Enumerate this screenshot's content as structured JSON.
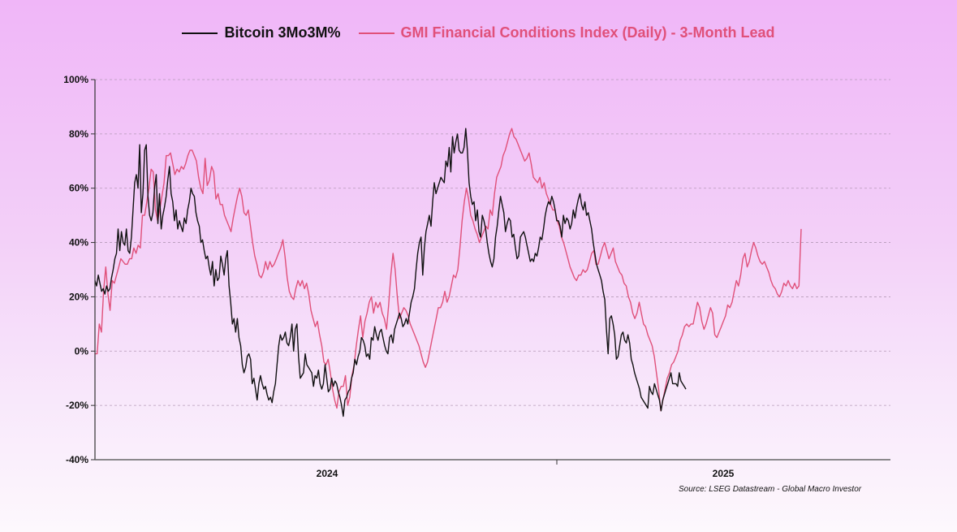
{
  "chart_data": {
    "type": "line",
    "title": "",
    "xlabel": "",
    "ylabel": "",
    "ylim": [
      -40,
      100
    ],
    "y_ticks": [
      "100%",
      "80%",
      "60%",
      "40%",
      "20%",
      "0%",
      "-20%",
      "-40%"
    ],
    "y_tick_values": [
      100,
      80,
      60,
      40,
      20,
      0,
      -20,
      -40
    ],
    "x_tick_labels": [
      "2024",
      "2025"
    ],
    "x_range_steps": 260,
    "grid": "horizontal dashed",
    "legend_placement": "top-center",
    "series": [
      {
        "name": "Bitcoin 3Mo3M%",
        "color": "#111111",
        "start_step": 0,
        "values": [
          26,
          24,
          28,
          25,
          22,
          23,
          21,
          24,
          22,
          23,
          27,
          30,
          34,
          36,
          45,
          37,
          44,
          40,
          39,
          45,
          37,
          36,
          42,
          52,
          62,
          65,
          60,
          76,
          51,
          58,
          74,
          76,
          57,
          50,
          48,
          51,
          60,
          65,
          47,
          58,
          45,
          50,
          53,
          57,
          63,
          68,
          58,
          55,
          48,
          52,
          45,
          48,
          46,
          44,
          49,
          47,
          52,
          55,
          60,
          58,
          57,
          51,
          48,
          46,
          40,
          41,
          37,
          34,
          35,
          31,
          28,
          33,
          24,
          30,
          26,
          27,
          35,
          32,
          28,
          34,
          37,
          24,
          18,
          10,
          12,
          7,
          12,
          5,
          2,
          -5,
          -8,
          -6,
          -2,
          -1,
          -3,
          -12,
          -10,
          -14,
          -18,
          -12,
          -9,
          -12,
          -14,
          -13,
          -16,
          -18,
          -17,
          -19,
          -15,
          -12,
          -5,
          2,
          6,
          4,
          5,
          7,
          3,
          2,
          5,
          10,
          0,
          8,
          10,
          -2,
          -10,
          -9,
          -8,
          -1,
          -5,
          -6,
          -7,
          -8,
          -13,
          -9,
          -10,
          -7,
          -12,
          -14,
          -12,
          -5,
          -10,
          -15,
          -14,
          -10,
          -13,
          -11,
          -12,
          -15,
          -17,
          -20,
          -24,
          -18,
          -17,
          -15,
          -14,
          -10,
          -8,
          -3,
          -5,
          -2,
          0,
          5,
          4,
          2,
          -2,
          -1,
          -3,
          5,
          4,
          9,
          6,
          4,
          7,
          8,
          5,
          2,
          0,
          -1,
          5,
          6,
          3,
          8,
          10,
          12,
          14,
          12,
          9,
          10,
          12,
          10,
          14,
          18,
          20,
          23,
          30,
          36,
          40,
          42,
          28,
          38,
          44,
          47,
          50,
          46,
          55,
          62,
          58,
          60,
          62,
          64,
          63,
          62,
          70,
          68,
          75,
          66,
          79,
          73,
          77,
          80,
          74,
          73,
          73,
          75,
          82,
          74,
          62,
          57,
          54,
          55,
          48,
          52,
          44,
          42,
          50,
          48,
          45,
          40,
          36,
          33,
          31,
          34,
          42,
          46,
          52,
          57,
          54,
          51,
          44,
          47,
          49,
          48,
          42,
          43,
          38,
          34,
          35,
          42,
          43,
          44,
          42,
          39,
          36,
          33,
          34,
          33,
          36,
          35,
          38,
          42,
          41,
          45,
          50,
          53,
          55,
          54,
          57,
          55,
          52,
          48,
          48,
          46,
          42,
          50,
          47,
          49,
          48,
          45,
          47,
          52,
          49,
          53,
          56,
          58,
          54,
          52,
          55,
          50,
          51,
          48,
          45,
          40,
          36,
          32,
          30,
          28,
          26,
          22,
          19,
          8,
          -1,
          12,
          13,
          10,
          6,
          -3,
          -2,
          2,
          6,
          7,
          4,
          3,
          6,
          3,
          -3,
          -5,
          -8,
          -10,
          -12,
          -14,
          -17,
          -18,
          -19,
          -20,
          -21,
          -13,
          -15,
          -16,
          -12,
          -14,
          -16,
          -18,
          -22,
          -18,
          -16,
          -14,
          -12,
          -10,
          -8,
          -12,
          -12,
          -12,
          -13,
          -8,
          -11,
          -12,
          -13,
          -14
        ]
      },
      {
        "name": "GMI Financial Conditions Index (Daily) - 3-Month Lead",
        "color": "#e0507a",
        "start_step": 0,
        "values": [
          -1,
          -1,
          10,
          7,
          22,
          31,
          21,
          15,
          26,
          25,
          28,
          31,
          34,
          33,
          32,
          32,
          34,
          34,
          38,
          36,
          39,
          38,
          50,
          50,
          55,
          60,
          67,
          66,
          52,
          48,
          52,
          57,
          62,
          72,
          72,
          73,
          69,
          65,
          67,
          66,
          68,
          67,
          69,
          72,
          74,
          74,
          72,
          70,
          64,
          60,
          58,
          71,
          61,
          63,
          68,
          66,
          56,
          58,
          54,
          54,
          50,
          48,
          46,
          44,
          49,
          53,
          57,
          60,
          57,
          51,
          50,
          52,
          46,
          40,
          35,
          32,
          28,
          27,
          29,
          33,
          30,
          33,
          31,
          32,
          34,
          36,
          38,
          41,
          35,
          27,
          22,
          20,
          19,
          23,
          26,
          24,
          26,
          23,
          25,
          21,
          15,
          12,
          9,
          11,
          6,
          2,
          -4,
          -5,
          -3,
          -8,
          -14,
          -18,
          -21,
          -15,
          -13,
          -13,
          -9,
          -20,
          -17,
          -9,
          -5,
          2,
          8,
          13,
          5,
          11,
          14,
          18,
          20,
          14,
          18,
          16,
          18,
          14,
          12,
          8,
          17,
          28,
          36,
          30,
          20,
          12,
          14,
          16,
          15,
          13,
          10,
          8,
          6,
          4,
          2,
          -1,
          -4,
          -6,
          -4,
          0,
          4,
          8,
          12,
          16,
          16,
          18,
          22,
          18,
          20,
          24,
          28,
          27,
          30,
          38,
          48,
          55,
          60,
          56,
          50,
          48,
          45,
          43,
          40,
          42,
          44,
          46,
          45,
          52,
          50,
          58,
          64,
          66,
          68,
          72,
          74,
          77,
          80,
          82,
          79,
          78,
          76,
          74,
          72,
          70,
          71,
          73,
          69,
          64,
          63,
          62,
          64,
          60,
          62,
          58,
          56,
          54,
          52,
          52,
          48,
          46,
          42,
          40,
          37,
          34,
          31,
          29,
          27,
          26,
          28,
          28,
          30,
          29,
          30,
          33,
          36,
          37,
          32,
          32,
          35,
          38,
          40,
          37,
          34,
          36,
          38,
          33,
          31,
          29,
          28,
          25,
          24,
          20,
          18,
          14,
          12,
          14,
          18,
          14,
          10,
          9,
          6,
          4,
          2,
          -2,
          -8,
          -14,
          -22,
          -18,
          -14,
          -10,
          -8,
          -5,
          -4,
          -2,
          0,
          4,
          6,
          9,
          10,
          9,
          10,
          10,
          14,
          18,
          16,
          11,
          8,
          10,
          13,
          16,
          14,
          6,
          5,
          7,
          9,
          11,
          13,
          17,
          16,
          18,
          22,
          26,
          24,
          28,
          34,
          36,
          31,
          33,
          37,
          40,
          38,
          35,
          33,
          32,
          33,
          31,
          29,
          26,
          24,
          23,
          21,
          20,
          22,
          25,
          24,
          26,
          24,
          23,
          25,
          23,
          24,
          45
        ]
      }
    ],
    "annotation": "Source: LSEG Datastream - Global Macro Investor"
  },
  "legend": [
    {
      "label": "Bitcoin 3Mo3M%",
      "color": "#111111"
    },
    {
      "label": "GMI Financial Conditions Index (Daily) - 3-Month Lead",
      "color": "#e0507a"
    }
  ],
  "source": "Source: LSEG Datastream - Global Macro Investor"
}
